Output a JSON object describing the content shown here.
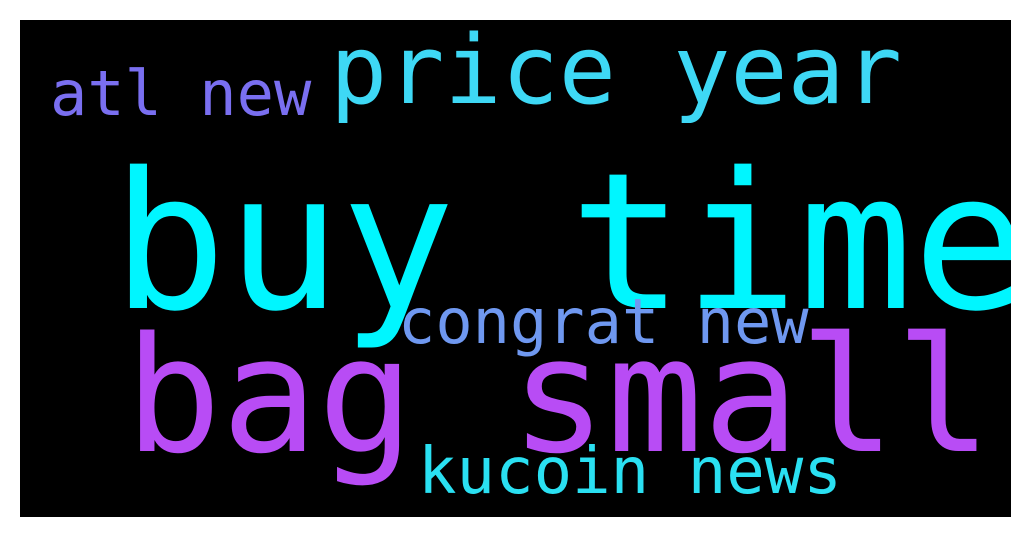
{
  "wordcloud": {
    "background": "#000000",
    "words": [
      {
        "id": "buy_time",
        "text": "buy time",
        "color": "#00f6ff"
      },
      {
        "id": "bag_small",
        "text": "bag small",
        "color": "#b84cf5"
      },
      {
        "id": "price_year",
        "text": "price year",
        "color": "#3ed8f5"
      },
      {
        "id": "atl_new",
        "text": "atl new",
        "color": "#7a6ff0"
      },
      {
        "id": "congrat_new",
        "text": "congrat new",
        "color": "#6f98f0"
      },
      {
        "id": "kucoin_news",
        "text": "kucoin news",
        "color": "#2ae0f2"
      }
    ]
  }
}
